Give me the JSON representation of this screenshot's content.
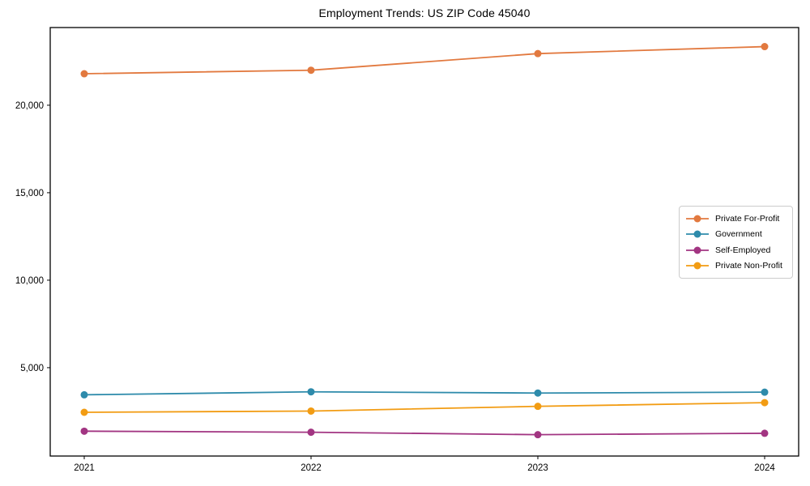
{
  "chart_data": {
    "type": "line",
    "title": "Employment Trends: US ZIP Code 45040",
    "x": [
      2021,
      2022,
      2023,
      2024
    ],
    "x_labels": [
      "2021",
      "2022",
      "2023",
      "2024"
    ],
    "xlim": [
      2020.85,
      2024.15
    ],
    "ylim": [
      -50,
      24440
    ],
    "grid": false,
    "legend_position": "center right",
    "axis_color": "#000000",
    "yticks": [
      {
        "value": 5000,
        "label": "5,000"
      },
      {
        "value": 10000,
        "label": "10,000"
      },
      {
        "value": 15000,
        "label": "15,000"
      },
      {
        "value": 20000,
        "label": "20,000"
      }
    ],
    "series": [
      {
        "name": "Private For-Profit",
        "color": "#E2793F",
        "values": [
          21800,
          22000,
          22950,
          23350
        ]
      },
      {
        "name": "Government",
        "color": "#2E8BAB",
        "values": [
          3450,
          3620,
          3550,
          3600
        ]
      },
      {
        "name": "Self-Employed",
        "color": "#A23582",
        "values": [
          1370,
          1310,
          1170,
          1250
        ]
      },
      {
        "name": "Private Non-Profit",
        "color": "#F29C13",
        "values": [
          2450,
          2520,
          2790,
          3000
        ]
      }
    ]
  }
}
